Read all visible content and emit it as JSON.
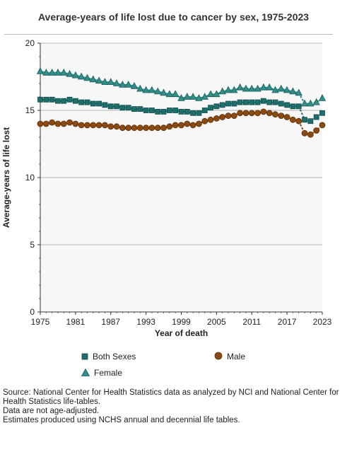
{
  "title": "Average-years of life lost due to cancer by sex, 1975-2023",
  "chart_data": {
    "type": "line",
    "title": "Average-years of life lost due to cancer by sex, 1975-2023",
    "xlabel": "Year of death",
    "ylabel": "Average-years of life lost",
    "xlim": [
      1975,
      2023
    ],
    "ylim": [
      0,
      20
    ],
    "x_ticks": [
      "1975",
      "1981",
      "1987",
      "1993",
      "1999",
      "2005",
      "2011",
      "2017",
      "2023"
    ],
    "y_ticks": [
      "0",
      "5",
      "10",
      "15",
      "20"
    ],
    "grid": true,
    "legend_position": "bottom",
    "x": [
      1975,
      1976,
      1977,
      1978,
      1979,
      1980,
      1981,
      1982,
      1983,
      1984,
      1985,
      1986,
      1987,
      1988,
      1989,
      1990,
      1991,
      1992,
      1993,
      1994,
      1995,
      1996,
      1997,
      1998,
      1999,
      2000,
      2001,
      2002,
      2003,
      2004,
      2005,
      2006,
      2007,
      2008,
      2009,
      2010,
      2011,
      2012,
      2013,
      2014,
      2015,
      2016,
      2017,
      2018,
      2019,
      2020,
      2021,
      2022,
      2023
    ],
    "series": [
      {
        "name": "Both Sexes",
        "color": "#1d6f6c",
        "marker": "square",
        "values": [
          15.8,
          15.8,
          15.8,
          15.7,
          15.7,
          15.8,
          15.7,
          15.6,
          15.6,
          15.5,
          15.5,
          15.4,
          15.3,
          15.3,
          15.2,
          15.2,
          15.1,
          15.1,
          15.0,
          15.0,
          14.9,
          14.9,
          15.0,
          15.0,
          14.9,
          14.9,
          14.8,
          14.8,
          15.0,
          15.2,
          15.3,
          15.4,
          15.5,
          15.5,
          15.6,
          15.6,
          15.6,
          15.6,
          15.7,
          15.6,
          15.6,
          15.5,
          15.4,
          15.3,
          15.3,
          14.3,
          14.2,
          14.5,
          14.8
        ]
      },
      {
        "name": "Male",
        "color": "#8b4a12",
        "marker": "circle",
        "values": [
          14.0,
          14.0,
          14.1,
          14.0,
          14.0,
          14.1,
          14.0,
          13.9,
          13.9,
          13.9,
          13.9,
          13.9,
          13.8,
          13.8,
          13.7,
          13.7,
          13.7,
          13.7,
          13.7,
          13.7,
          13.7,
          13.7,
          13.8,
          13.9,
          13.9,
          14.0,
          13.9,
          14.0,
          14.2,
          14.3,
          14.4,
          14.5,
          14.6,
          14.6,
          14.8,
          14.8,
          14.8,
          14.8,
          14.9,
          14.8,
          14.7,
          14.6,
          14.5,
          14.3,
          14.2,
          13.3,
          13.2,
          13.5,
          13.9
        ]
      },
      {
        "name": "Female",
        "color": "#2f8f8a",
        "marker": "triangle",
        "values": [
          17.9,
          17.8,
          17.8,
          17.8,
          17.8,
          17.7,
          17.6,
          17.5,
          17.4,
          17.3,
          17.2,
          17.1,
          17.1,
          17.0,
          16.9,
          16.9,
          16.8,
          16.6,
          16.5,
          16.5,
          16.4,
          16.3,
          16.2,
          16.2,
          15.9,
          16.0,
          16.0,
          15.9,
          16.0,
          16.2,
          16.2,
          16.4,
          16.5,
          16.5,
          16.7,
          16.6,
          16.6,
          16.6,
          16.7,
          16.7,
          16.5,
          16.6,
          16.5,
          16.4,
          16.3,
          15.5,
          15.5,
          15.6,
          15.9
        ]
      }
    ]
  },
  "legend": {
    "both_sexes": "Both Sexes",
    "male": "Male",
    "female": "Female"
  },
  "source_notes": [
    "Source: National Center for Health Statistics data as analyzed by NCI and National Center for Health Statistics life-tables.",
    "Data are not age-adjusted.",
    "Estimates produced using NCHS annual and decennial life tables."
  ]
}
